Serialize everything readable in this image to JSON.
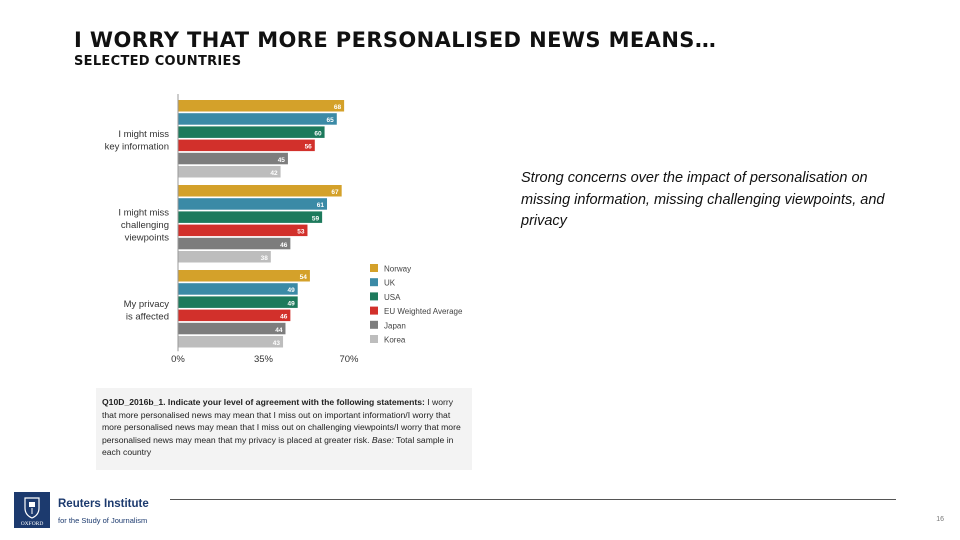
{
  "slide": {
    "title": "I WORRY THAT MORE PERSONALISED NEWS MEANS…",
    "subtitle": "SELECTED COUNTRIES",
    "callout": "Strong concerns over the impact of personalisation on missing information, missing challenging viewpoints, and privacy",
    "page_number": "16"
  },
  "question": {
    "code": "Q10D_2016b_1. Indicate your level of agreement with the following statements:",
    "text": "I worry that more personalised news may mean that I miss out on important information/I worry that more personalised news may mean that I miss out on challenging viewpoints/I worry that more personalised news may mean that my privacy is placed at greater risk.",
    "base_label": "Base:",
    "base_text": "Total sample in each country"
  },
  "logo": {
    "name": "Reuters Institute",
    "subtitle": "for the Study of Journalism",
    "crest_text": "OXFORD"
  },
  "chart_data": {
    "type": "bar",
    "orientation": "horizontal",
    "categories": [
      [
        "I might miss",
        "key information"
      ],
      [
        "I might miss",
        "challenging",
        "viewpoints"
      ],
      [
        "My privacy",
        "is affected"
      ]
    ],
    "series": [
      {
        "name": "Norway",
        "color": "#d4a12a",
        "values": [
          68,
          67,
          54
        ]
      },
      {
        "name": "UK",
        "color": "#3b8aa6",
        "values": [
          65,
          61,
          49
        ]
      },
      {
        "name": "USA",
        "color": "#1d7a5c",
        "values": [
          60,
          59,
          49
        ]
      },
      {
        "name": "EU Weighted Average",
        "color": "#d2302b",
        "values": [
          56,
          53,
          46
        ]
      },
      {
        "name": "Japan",
        "color": "#7d7d7d",
        "values": [
          45,
          46,
          44
        ]
      },
      {
        "name": "Korea",
        "color": "#bdbdbd",
        "values": [
          42,
          38,
          43
        ]
      }
    ],
    "xlim": [
      0,
      70
    ],
    "xticks": [
      "0%",
      "35%",
      "70%"
    ],
    "xtick_values": [
      0,
      35,
      70
    ],
    "grid": false,
    "data_labels": true,
    "legend_position": "right"
  }
}
